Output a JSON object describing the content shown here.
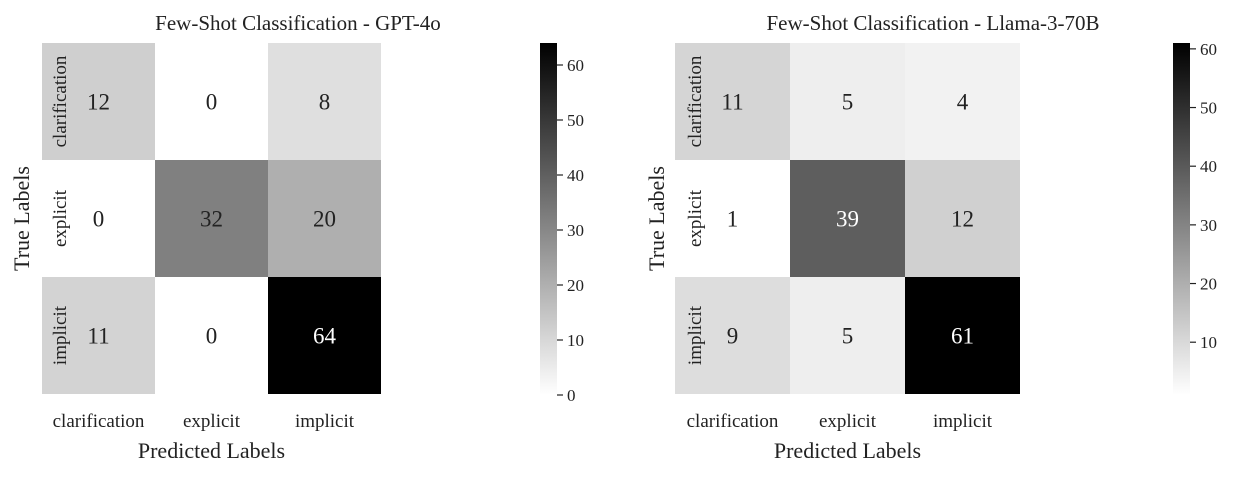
{
  "chart_data": [
    {
      "type": "heatmap",
      "title": "Few-Shot Classification - GPT-4o",
      "xlabel": "Predicted Labels",
      "ylabel": "True Labels",
      "x_categories": [
        "clarification",
        "explicit",
        "implicit"
      ],
      "y_categories": [
        "clarification",
        "explicit",
        "implicit"
      ],
      "values": [
        [
          12,
          0,
          8
        ],
        [
          0,
          32,
          20
        ],
        [
          11,
          0,
          64
        ]
      ],
      "colorbar": {
        "range": [
          0,
          64
        ],
        "ticks": [
          "0",
          "10",
          "20",
          "30",
          "40",
          "50",
          "60"
        ],
        "colormap": "white-to-black"
      }
    },
    {
      "type": "heatmap",
      "title": "Few-Shot Classification - Llama-3-70B",
      "xlabel": "Predicted Labels",
      "ylabel": "True Labels",
      "x_categories": [
        "clarification",
        "explicit",
        "implicit"
      ],
      "y_categories": [
        "clarification",
        "explicit",
        "implicit"
      ],
      "values": [
        [
          11,
          5,
          4
        ],
        [
          1,
          39,
          12
        ],
        [
          9,
          5,
          61
        ]
      ],
      "colorbar": {
        "range": [
          1,
          61
        ],
        "ticks": [
          "10",
          "20",
          "30",
          "40",
          "50",
          "60"
        ],
        "colormap": "white-to-black"
      }
    }
  ]
}
